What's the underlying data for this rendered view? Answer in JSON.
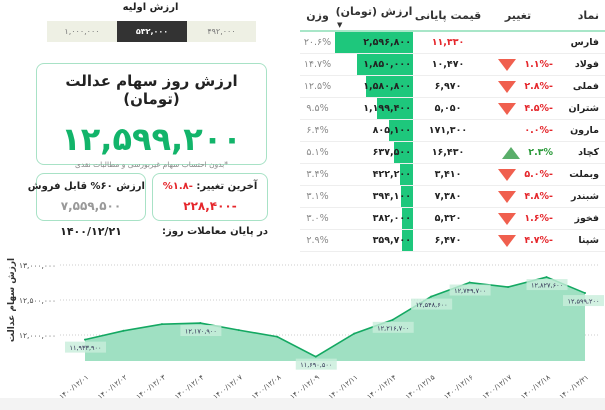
{
  "table": {
    "headers": {
      "symbol": "نماد",
      "change": "تغییر",
      "price": "قیمت پایانی",
      "value": "ارزش (تومان)",
      "weight": "وزن"
    },
    "rows": [
      {
        "symbol": "فارس",
        "change": "",
        "dir": "none",
        "price": "۱۱,۳۳۰",
        "price_red": true,
        "value": "۲,۵۹۶,۸۰۰",
        "value_num": 2596800,
        "weight": "۲۰.۶%"
      },
      {
        "symbol": "فولاد",
        "change": "-۱.۱%",
        "dir": "down",
        "price": "۱۰,۴۷۰",
        "value": "۱,۸۵۰,۰۰۰",
        "value_num": 1850000,
        "weight": "۱۴.۷%"
      },
      {
        "symbol": "فملی",
        "change": "-۲.۸%",
        "dir": "down",
        "price": "۶,۹۷۰",
        "value": "۱,۵۸۰,۸۰۰",
        "value_num": 1580800,
        "weight": "۱۲.۵%"
      },
      {
        "symbol": "شتران",
        "change": "-۴.۵%",
        "dir": "down",
        "price": "۵,۰۵۰",
        "value": "۱,۱۹۹,۴۰۰",
        "value_num": 1199400,
        "weight": "۹.۵%"
      },
      {
        "symbol": "مارون",
        "change": "-۰.۰%",
        "dir": "none",
        "price": "۱۷۱,۳۰۰",
        "value": "۸۰۵,۱۰۰",
        "value_num": 805100,
        "weight": "۶.۴%"
      },
      {
        "symbol": "کچاد",
        "change": "۲.۳%",
        "dir": "up",
        "price": "۱۶,۴۳۰",
        "value": "۶۳۷,۵۰۰",
        "value_num": 637500,
        "weight": "۵.۱%"
      },
      {
        "symbol": "وبملت",
        "change": "-۵.۰%",
        "dir": "down",
        "price": "۳,۴۱۰",
        "value": "۴۲۲,۲۰۰",
        "value_num": 422200,
        "weight": "۳.۴%"
      },
      {
        "symbol": "شبندر",
        "change": "-۴.۸%",
        "dir": "down",
        "price": "۷,۳۸۰",
        "value": "۳۹۴,۱۰۰",
        "value_num": 394100,
        "weight": "۳.۱%"
      },
      {
        "symbol": "فخوز",
        "change": "-۱.۶%",
        "dir": "down",
        "price": "۵,۳۲۰",
        "value": "۳۸۲,۰۰۰",
        "value_num": 382000,
        "weight": "۳.۰%"
      },
      {
        "symbol": "شپنا",
        "change": "-۴.۷%",
        "dir": "down",
        "price": "۶,۴۷۰",
        "value": "۳۵۹,۷۰۰",
        "value_num": 359700,
        "weight": "۲.۹%"
      }
    ]
  },
  "initial": {
    "title": "ارزش اولیه",
    "options": [
      "۴۹۲,۰۰۰",
      "۵۳۲,۰۰۰",
      "۱,۰۰۰,۰۰۰"
    ],
    "selected": 1
  },
  "main": {
    "title": "ارزش روز سهام عدالت (تومان)",
    "value": "۱۲,۵۹۹,۲۰۰",
    "note": "*بدون احتساب سهام غیربورسی و مطالبات نقدی"
  },
  "last_change": {
    "label": "آخرین تغییر:",
    "pct": "-۱.۸%",
    "amount": "-۲۲۸,۴۰۰"
  },
  "sellable": {
    "label": "ارزش ۶۰% قابل فروش",
    "value": "۷,۵۵۹,۵۰۰"
  },
  "end_of_day": {
    "label": "در پایان معاملات روز:",
    "date": "۱۴۰۰/۱۲/۲۱"
  },
  "colors": {
    "accent": "#1ec77c",
    "negative": "#e5262b",
    "positive": "#2b9a3a",
    "selected_bg": "#333333",
    "option_bg": "#eef0e4"
  },
  "chart_data": {
    "type": "area",
    "ylabel": "ارزش سهام عدالت",
    "ylim": [
      11600000,
      13000000
    ],
    "yticks": [
      {
        "v": 12000000,
        "label": "۱۲,۰۰۰,۰۰۰"
      },
      {
        "v": 12500000,
        "label": "۱۲,۵۰۰,۰۰۰"
      },
      {
        "v": 13000000,
        "label": "۱۳,۰۰۰,۰۰۰"
      }
    ],
    "grid": true,
    "x": [
      "۱۴۰۰/۱۲/۰۱",
      "۱۴۰۰/۱۲/۰۲",
      "۱۴۰۰/۱۲/۰۳",
      "۱۴۰۰/۱۲/۰۴",
      "۱۴۰۰/۱۲/۰۷",
      "۱۴۰۰/۱۲/۰۸",
      "۱۴۰۰/۱۲/۰۹",
      "۱۴۰۰/۱۲/۱۱",
      "۱۴۰۰/۱۲/۱۴",
      "۱۴۰۰/۱۲/۱۵",
      "۱۴۰۰/۱۲/۱۶",
      "۱۴۰۰/۱۲/۱۷",
      "۱۴۰۰/۱۲/۱۸",
      "۱۴۰۰/۱۲/۲۱"
    ],
    "values": [
      11933900,
      12060000,
      12155000,
      12170900,
      12070000,
      11975000,
      11690500,
      12020000,
      12216700,
      12548600,
      12749700,
      12685000,
      12827600,
      12599200
    ],
    "labels": [
      "۱۱,۹۳۳,۹۰۰",
      "",
      "",
      "۱۲,۱۷۰,۹۰۰",
      "",
      "",
      "۱۱,۶۹۰,۵۰۰",
      "",
      "۱۲,۲۱۶,۷۰۰",
      "۱۲,۵۴۸,۶۰۰",
      "۱۲,۷۴۹,۷۰۰",
      "",
      "۱۲,۸۲۷,۶۰۰",
      "۱۲,۵۹۹,۲۰۰"
    ]
  }
}
